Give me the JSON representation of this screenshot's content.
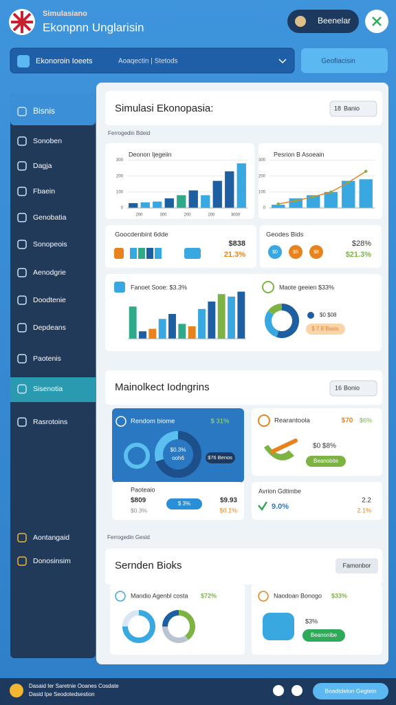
{
  "header": {
    "brand_small": "Simulasiano",
    "brand": "Ekonpnn Unglarisin",
    "account": "Beenelar"
  },
  "search": {
    "placeholder": "Ekonoroin Ioeets",
    "filter": "Aoaqectin | Stetods",
    "button": "Geofiacisin"
  },
  "sidebar": [
    "Bisnis",
    "Sonoben",
    "Dagja",
    "Fbaein",
    "Genobatia",
    "Sonopeois",
    "Aenodgrie",
    "Doodtenie",
    "Depdeans",
    "Paotenis",
    "Sisenotia",
    "Rasrotoins",
    "Aontangaid",
    "Donosinsim"
  ],
  "section1": {
    "title": "Simulasi Ekonopasia:",
    "dropdown_num": "18",
    "dropdown": "Banio",
    "label": "Ferrogedin Bdeid"
  },
  "charts": [
    {
      "title": "Deonon Ijegeiin",
      "ylim": [
        0,
        320
      ],
      "yticks": [
        0,
        100,
        200,
        300
      ],
      "categories": [
        "200",
        "300",
        "200",
        "200",
        "3000"
      ],
      "values": [
        30,
        35,
        40,
        60,
        80,
        110,
        80,
        170,
        230,
        280
      ],
      "colors": [
        "#1d5fa0",
        "#39a8e0",
        "#39a8e0",
        "#1d5fa0",
        "#2eaa8a",
        "#1d5fa0",
        "#39a8e0",
        "#1d5fa0",
        "#1d5fa0",
        "#39a8e0"
      ]
    },
    {
      "title": "Pesrion B Asoeain",
      "ylim": [
        0,
        320
      ],
      "yticks": [
        0,
        100,
        200,
        300
      ],
      "values": [
        20,
        60,
        80,
        100,
        170,
        180
      ],
      "line": [
        25,
        45,
        70,
        100,
        160,
        230
      ],
      "bar_color": "#39a8e0",
      "line_color": "#e8821e"
    },
    {
      "title": "Fanoet Sooe: $3.3%",
      "ylim": [
        0,
        100
      ],
      "values": [
        65,
        15,
        20,
        40,
        50,
        30,
        25,
        60,
        75,
        90,
        85,
        95
      ],
      "colors": [
        "#2eaa8a",
        "#1d5fa0",
        "#e8821e",
        "#39a8e0",
        "#1d5fa0",
        "#2eaa8a",
        "#e8821e",
        "#39a8e0",
        "#1d5fa0",
        "#7cb342",
        "#39a8e0",
        "#1d5fa0"
      ]
    }
  ],
  "cards1": [
    {
      "title": "Goocdenbint 6dde",
      "value": "$838",
      "change": "21.3%"
    },
    {
      "title": "Geodes Bids",
      "chips": [
        "$0",
        "$5",
        "$8"
      ],
      "value": "$28%",
      "change": "$21.3%"
    }
  ],
  "donut_card": {
    "title": "Maote geeien $33%",
    "legend": "$0 $08",
    "pill": "$ 7.8 Basis",
    "values": [
      55,
      30,
      15
    ],
    "colors": [
      "#1d5fa0",
      "#39a8e0",
      "#7cb342"
    ]
  },
  "section2": {
    "title": "Mainolkect Iodngrins",
    "dropdown_num": "16",
    "dropdown": "Bonio"
  },
  "blue_card": {
    "title": "Rendom biome",
    "change": "$ 31%",
    "center": [
      "$0.3%",
      "ooh6"
    ],
    "pill": "$76 Benos",
    "values": [
      70,
      30
    ],
    "colors": [
      "#1d4f8a",
      "#5bc0f0"
    ]
  },
  "right_card": {
    "title": "Rearantoola",
    "value": "$70",
    "change": "$6%",
    "sub": "$0 $8%",
    "button": "Beanobite"
  },
  "left_small": {
    "title": "Paoteaio",
    "v1": "$809",
    "v2": "$0.3%",
    "pill": "$ 3%",
    "v3": "$9.93",
    "v4": "$0.1%"
  },
  "right_small": {
    "title": "Avrion Gdtimbe",
    "value": "9.0%",
    "v1": "2.2",
    "v2": "2.1%"
  },
  "section3": {
    "label": "Ferrogedin Gesid",
    "title": "Sernden Bioks",
    "button": "Famonbor"
  },
  "cards3": [
    {
      "title": "Mandio Agenbl costa",
      "change": "$72%",
      "donuts": [
        {
          "values": [
            75,
            25
          ],
          "colors": [
            "#39a8e0",
            "#d7e6f2"
          ]
        },
        {
          "values": [
            40,
            35,
            25
          ],
          "colors": [
            "#7cb342",
            "#b8c4cf",
            "#1d5fa0"
          ]
        }
      ]
    },
    {
      "title": "Naodoan Bonogo",
      "change": "$33%",
      "value": "$3%",
      "button": "Beanonibe"
    }
  ],
  "footer": {
    "lines": [
      "Dasaid Ier Saretnie Ooanes Cosdate",
      "Dasid Ipe Seodotedsestion"
    ],
    "button": "Boadtdelon Gegtein"
  }
}
